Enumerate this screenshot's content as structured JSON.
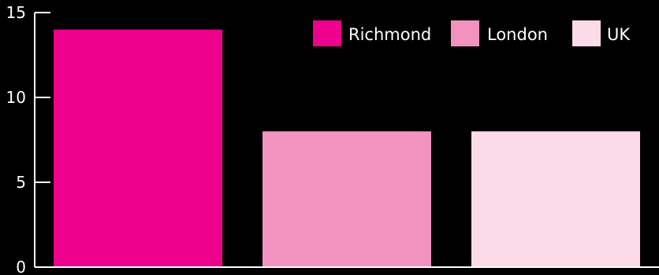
{
  "chart_data": {
    "type": "bar",
    "title": "",
    "xlabel": "",
    "ylabel": "",
    "ylim": [
      0,
      15
    ],
    "yticks": [
      0,
      5,
      10,
      15
    ],
    "grid": false,
    "legend_position": "top-right",
    "background": "#000000",
    "axis_color": "#ffffff",
    "categories": [
      "Richmond",
      "London",
      "UK"
    ],
    "series": [
      {
        "name": "Richmond",
        "color": "#ec008c",
        "values": [
          14,
          null,
          null
        ]
      },
      {
        "name": "London",
        "color": "#f292bf",
        "values": [
          null,
          8,
          null
        ]
      },
      {
        "name": "UK",
        "color": "#fbdbe7",
        "values": [
          null,
          null,
          8
        ]
      }
    ]
  }
}
